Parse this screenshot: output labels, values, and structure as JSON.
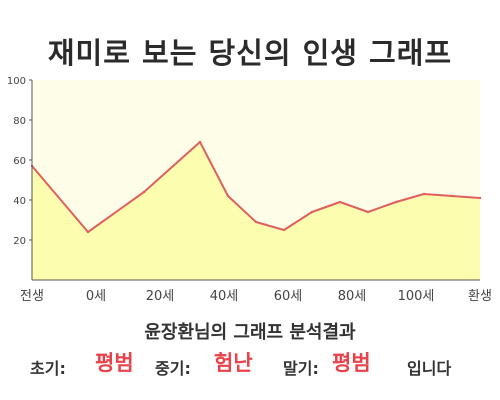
{
  "header": {
    "title": "재미로 보는 당신의 인생 그래프"
  },
  "chart_data": {
    "type": "area",
    "categories": [
      "전생",
      "0세",
      "20세",
      "40세",
      "60세",
      "80세",
      "100세",
      "환생"
    ],
    "x": [
      -10,
      0,
      10,
      20,
      25,
      30,
      35,
      40,
      45,
      50,
      55,
      60,
      65,
      70
    ],
    "values": [
      57,
      24,
      44,
      69,
      42,
      29,
      25,
      34,
      39,
      34,
      39,
      43,
      42,
      41
    ],
    "ylim": [
      0,
      100
    ],
    "yticks": [
      20,
      40,
      60,
      80,
      100
    ],
    "grid": false,
    "colors": {
      "fill": "#fdfdb0",
      "line": "#e05f5f",
      "plot_bg": "#fefee8"
    }
  },
  "analysis": {
    "subtitle": "윤장환님의 그래프 분석결과",
    "early_label": "초기:",
    "early_value": "평범",
    "middle_label": "중기:",
    "middle_value": "험난",
    "late_label": "말기:",
    "late_value": "평범",
    "suffix": "입니다"
  }
}
